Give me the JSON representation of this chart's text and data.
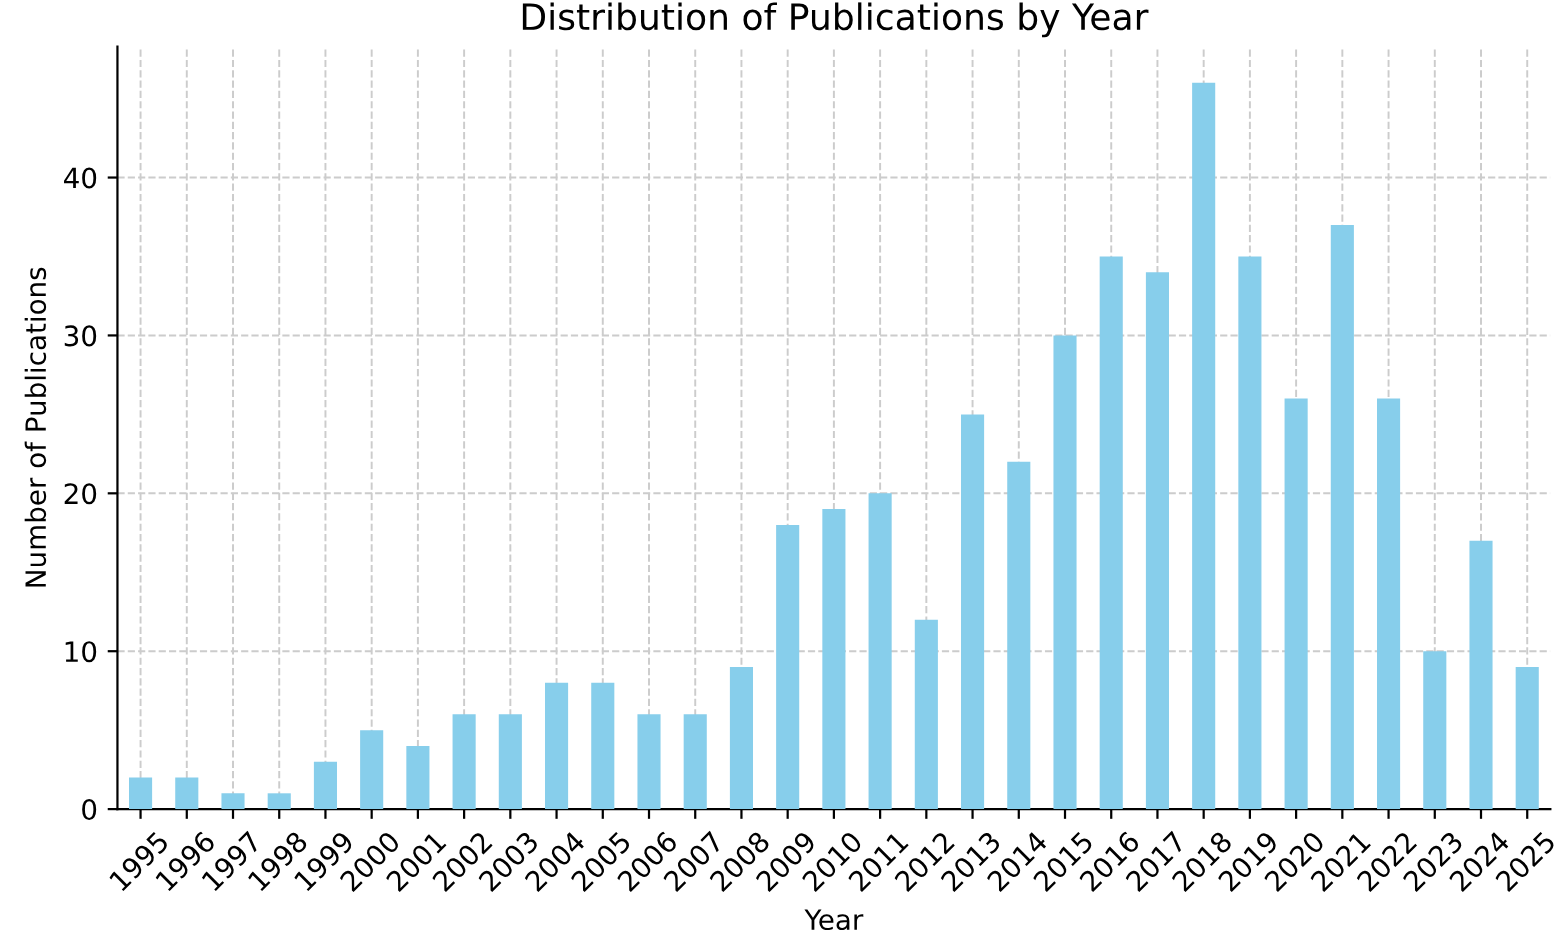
{
  "chart_data": {
    "type": "bar",
    "title": "Distribution of Publications by Year",
    "xlabel": "Year",
    "ylabel": "Number of Publications",
    "categories": [
      "1995",
      "1996",
      "1997",
      "1998",
      "1999",
      "2000",
      "2001",
      "2002",
      "2003",
      "2004",
      "2005",
      "2006",
      "2007",
      "2008",
      "2009",
      "2010",
      "2011",
      "2012",
      "2013",
      "2014",
      "2015",
      "2016",
      "2017",
      "2018",
      "2019",
      "2020",
      "2021",
      "2022",
      "2023",
      "2024",
      "2025"
    ],
    "values": [
      2,
      2,
      1,
      1,
      3,
      5,
      4,
      6,
      6,
      8,
      8,
      6,
      6,
      9,
      18,
      19,
      20,
      12,
      25,
      22,
      30,
      35,
      34,
      46,
      35,
      26,
      37,
      26,
      10,
      17,
      9
    ],
    "color": "#87ceeb",
    "ylim": [
      0,
      48.3
    ],
    "yticks": [
      0,
      10,
      20,
      30,
      40
    ],
    "grid": true,
    "line_style": "dashed"
  }
}
